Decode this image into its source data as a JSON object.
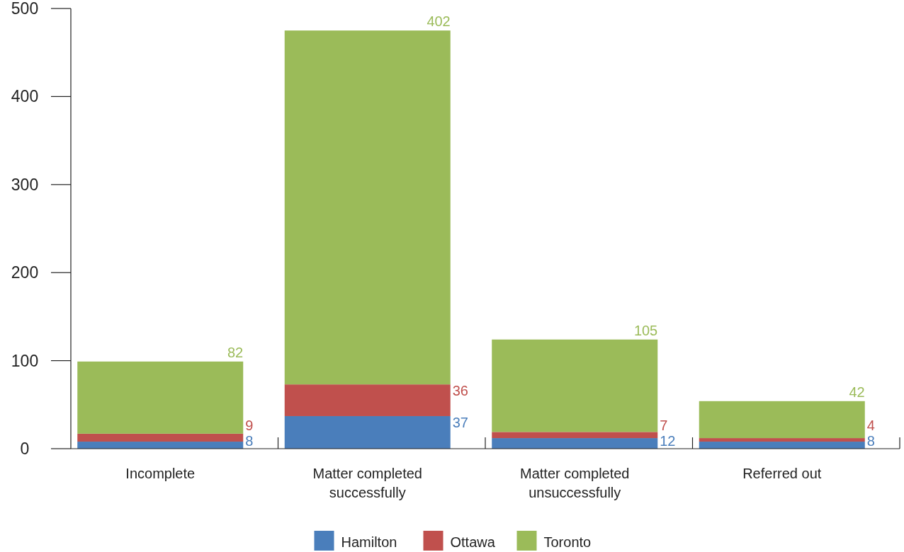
{
  "chart_data": {
    "type": "bar",
    "stacked": true,
    "categories": [
      "Incomplete",
      "Matter completed successfully",
      "Matter completed unsuccessfully",
      "Referred out"
    ],
    "series": [
      {
        "name": "Hamilton",
        "color": "#4a7ebb",
        "values": [
          8,
          37,
          12,
          8
        ]
      },
      {
        "name": "Ottawa",
        "color": "#c0504d",
        "values": [
          9,
          36,
          7,
          4
        ]
      },
      {
        "name": "Toronto",
        "color": "#9bbb59",
        "values": [
          82,
          402,
          105,
          42
        ]
      }
    ],
    "ylim": [
      0,
      500
    ],
    "yticks": [
      0,
      100,
      200,
      300,
      400,
      500
    ],
    "data_labels": true,
    "legend": "bottom",
    "grid": false
  }
}
